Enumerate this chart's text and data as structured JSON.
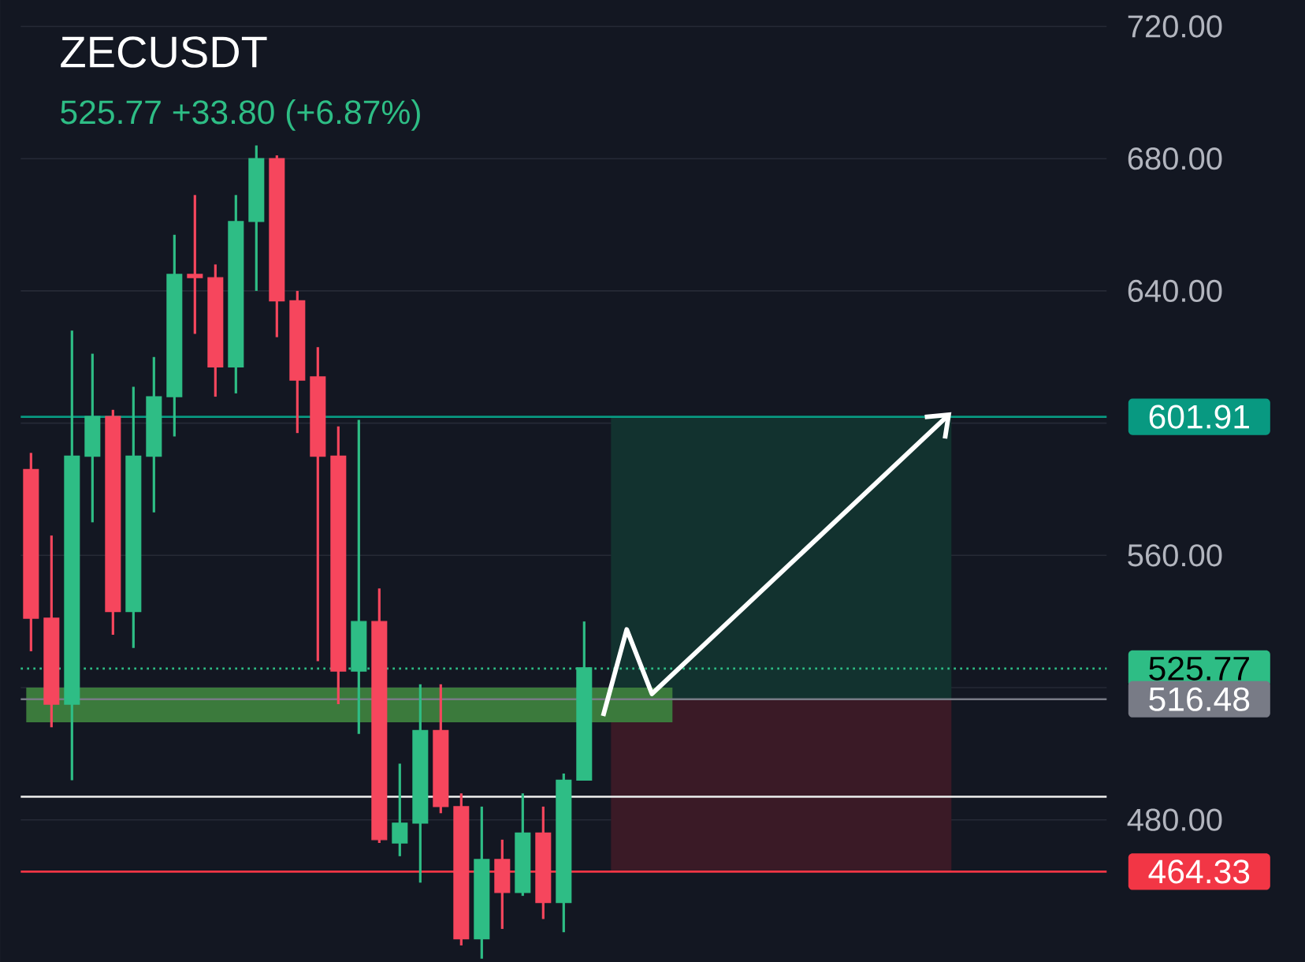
{
  "chart_data": {
    "type": "candlestick",
    "title": "ZECUSDT",
    "subtitle": "525.77  +33.80 (+6.87%)",
    "categories": [
      null,
      null,
      null,
      null,
      null,
      null,
      null,
      null,
      null,
      null,
      null,
      null,
      null,
      null,
      null,
      null,
      null,
      null,
      null,
      null,
      null,
      null,
      null,
      null,
      null,
      null,
      null,
      null,
      null,
      null,
      null,
      null,
      null,
      null,
      null,
      null,
      null,
      null,
      null,
      null,
      null,
      null,
      null,
      null,
      null,
      null,
      null,
      null,
      null,
      null,
      null,
      null,
      null
    ],
    "ohlc": [
      [
        586,
        591,
        531,
        541
      ],
      [
        541,
        566,
        508,
        515
      ],
      [
        515,
        628,
        492,
        590
      ],
      [
        590,
        621,
        570,
        602
      ],
      [
        602,
        604,
        536,
        543
      ],
      [
        543,
        611,
        532,
        590
      ],
      [
        590,
        620,
        573,
        608
      ],
      [
        608,
        657,
        596,
        645
      ],
      [
        645,
        669,
        627,
        644
      ],
      [
        644,
        648,
        608,
        617
      ],
      [
        617,
        669,
        609,
        661
      ],
      [
        661,
        684,
        640,
        680
      ],
      [
        680,
        681,
        626,
        637
      ],
      [
        637,
        640,
        597,
        613
      ],
      [
        614,
        623,
        528,
        590
      ],
      [
        590,
        599,
        515,
        525
      ],
      [
        525,
        601,
        506,
        540
      ],
      [
        540,
        550,
        473,
        474
      ],
      [
        473,
        497,
        469,
        479
      ],
      [
        479,
        521,
        461,
        507
      ],
      [
        507,
        521,
        482,
        484
      ],
      [
        484,
        488,
        442,
        444
      ],
      [
        444,
        484,
        438,
        468
      ],
      [
        468,
        474,
        447,
        458
      ],
      [
        458,
        488,
        457,
        476
      ],
      [
        476,
        484,
        450,
        455
      ],
      [
        455,
        494,
        446,
        492
      ],
      [
        492,
        540,
        492,
        526
      ],
      null,
      null,
      null,
      null,
      null,
      null,
      null,
      null,
      null,
      null,
      null,
      null,
      null,
      null,
      null,
      null,
      null,
      null,
      null,
      null,
      null,
      null,
      null,
      null,
      null
    ],
    "colors": [
      "#f6465d",
      "#f6465d",
      "#2ebd85",
      "#2ebd85",
      "#f6465d",
      "#2ebd85",
      "#2ebd85",
      "#2ebd85",
      "#f6465d",
      "#f6465d",
      "#2ebd85",
      "#2ebd85",
      "#f6465d",
      "#f6465d",
      "#f6465d",
      "#f6465d",
      "#2ebd85",
      "#f6465d",
      "#2ebd85",
      "#2ebd85",
      "#f6465d",
      "#f6465d",
      "#2ebd85",
      "#f6465d",
      "#2ebd85",
      "#f6465d",
      "#2ebd85",
      "#2ebd85",
      null,
      null,
      null,
      null,
      null,
      null,
      null,
      null,
      null,
      null,
      null,
      null,
      null,
      null,
      null,
      null,
      null,
      null,
      null,
      null,
      null,
      null,
      null,
      null,
      null
    ],
    "ylim": [
      437,
      728
    ],
    "yticks": [
      {
        "value": 480,
        "label": "480.00"
      },
      {
        "value": 520,
        "label": null
      },
      {
        "value": 560,
        "label": "560.00"
      },
      {
        "value": 600,
        "label": null
      },
      {
        "value": 640,
        "label": "640.00"
      },
      {
        "value": 680,
        "label": "680.00"
      },
      {
        "value": 720,
        "label": "720.00"
      }
    ],
    "grid": "y",
    "bands": [
      {
        "axis": "y",
        "from": 516.48,
        "to": 601.91,
        "color": "#12322f"
      },
      {
        "axis": "y",
        "from": 464.33,
        "to": 516.48,
        "color": "#3a1a26"
      },
      {
        "axis": "y",
        "from": 509.5,
        "to": 520,
        "color": "#3b7a3c"
      }
    ],
    "ref_lines": [
      {
        "axis": "y",
        "value": 601.91,
        "label": "601.91",
        "color": "#089981"
      },
      {
        "axis": "y",
        "value": 525.77,
        "label": "525.77",
        "color": "#2ebd85",
        "line_style": "dotted"
      },
      {
        "axis": "y",
        "value": 516.48,
        "label": "516.48",
        "color": "#787b86"
      },
      {
        "axis": "y",
        "value": 464.33,
        "label": "464.33",
        "color": "#f23645"
      },
      {
        "axis": "y",
        "value": 487,
        "color": "#e0e0e0"
      }
    ]
  }
}
